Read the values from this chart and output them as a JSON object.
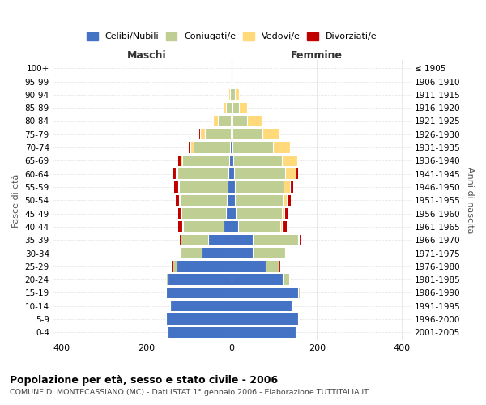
{
  "age_groups": [
    "0-4",
    "5-9",
    "10-14",
    "15-19",
    "20-24",
    "25-29",
    "30-34",
    "35-39",
    "40-44",
    "45-49",
    "50-54",
    "55-59",
    "60-64",
    "65-69",
    "70-74",
    "75-79",
    "80-84",
    "85-89",
    "90-94",
    "95-99",
    "100+"
  ],
  "birth_years": [
    "2001-2005",
    "1996-2000",
    "1991-1995",
    "1986-1990",
    "1981-1985",
    "1976-1980",
    "1971-1975",
    "1966-1970",
    "1961-1965",
    "1956-1960",
    "1951-1955",
    "1946-1950",
    "1941-1945",
    "1936-1940",
    "1931-1935",
    "1926-1930",
    "1921-1925",
    "1916-1920",
    "1911-1915",
    "1906-1910",
    "≤ 1905"
  ],
  "male": {
    "celibi": [
      150,
      155,
      145,
      155,
      150,
      130,
      70,
      55,
      20,
      14,
      12,
      10,
      8,
      6,
      4,
      3,
      2,
      1,
      0,
      0,
      0
    ],
    "coniugati": [
      0,
      0,
      1,
      2,
      5,
      10,
      50,
      65,
      95,
      105,
      110,
      115,
      120,
      110,
      85,
      60,
      30,
      12,
      5,
      2,
      0
    ],
    "vedovi": [
      0,
      0,
      0,
      0,
      0,
      0,
      0,
      0,
      1,
      1,
      2,
      2,
      3,
      5,
      8,
      12,
      12,
      8,
      3,
      1,
      0
    ],
    "divorziati": [
      0,
      0,
      0,
      0,
      0,
      1,
      1,
      2,
      10,
      7,
      8,
      8,
      6,
      5,
      5,
      2,
      0,
      0,
      0,
      0,
      0
    ]
  },
  "female": {
    "nubili": [
      150,
      155,
      140,
      155,
      120,
      80,
      50,
      50,
      14,
      10,
      8,
      7,
      5,
      3,
      2,
      2,
      1,
      1,
      0,
      0,
      0
    ],
    "coniugate": [
      0,
      0,
      2,
      5,
      15,
      30,
      75,
      105,
      100,
      108,
      112,
      115,
      120,
      115,
      95,
      70,
      35,
      15,
      8,
      2,
      0
    ],
    "vedove": [
      0,
      0,
      0,
      0,
      0,
      1,
      1,
      2,
      3,
      5,
      10,
      15,
      25,
      35,
      40,
      40,
      35,
      20,
      8,
      2,
      0
    ],
    "divorziate": [
      0,
      0,
      0,
      0,
      1,
      2,
      2,
      5,
      12,
      8,
      8,
      8,
      6,
      3,
      2,
      1,
      0,
      0,
      0,
      0,
      0
    ]
  },
  "color_celibi": "#4472C4",
  "color_coniugati": "#BFCE93",
  "color_vedovi": "#FFD97A",
  "color_divorziati": "#C00000",
  "title": "Popolazione per età, sesso e stato civile - 2006",
  "subtitle": "COMUNE DI MONTECASSIANO (MC) - Dati ISTAT 1° gennaio 2006 - Elaborazione TUTTITALIA.IT",
  "xlabel_left": "Maschi",
  "xlabel_right": "Femmine",
  "ylabel_left": "Fasce di età",
  "ylabel_right": "Anni di nascita",
  "xlim": 420,
  "legend_labels": [
    "Celibi/Nubili",
    "Coniugati/e",
    "Vedovi/e",
    "Divorziati/e"
  ]
}
